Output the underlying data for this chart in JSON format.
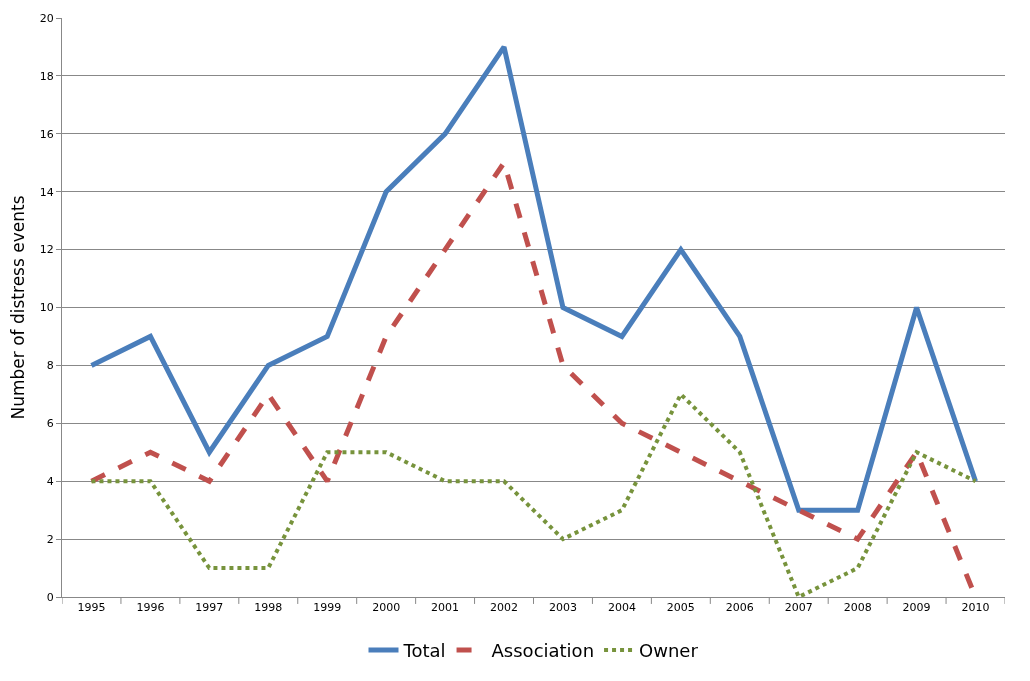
{
  "chart_data": {
    "type": "line",
    "ylabel": "Number of distress events",
    "categories": [
      "1995",
      "1996",
      "1997",
      "1998",
      "1999",
      "2000",
      "2001",
      "2002",
      "2003",
      "2004",
      "2005",
      "2006",
      "2007",
      "2008",
      "2009",
      "2010"
    ],
    "series": [
      {
        "name": "Total",
        "color": "#4a7ebb",
        "line_style": "solid",
        "values": [
          8,
          9,
          5,
          8,
          9,
          14,
          16,
          19,
          10,
          9,
          12,
          9,
          3,
          3,
          10,
          4
        ]
      },
      {
        "name": "Association",
        "color": "#c0504d",
        "line_style": "dashed",
        "values": [
          4,
          5,
          4,
          7,
          4,
          9,
          12,
          15,
          8,
          6,
          5,
          4,
          3,
          2,
          5,
          0
        ]
      },
      {
        "name": "Owner",
        "color": "#77933c",
        "line_style": "dotted",
        "values": [
          4,
          4,
          1,
          1,
          5,
          5,
          4,
          4,
          2,
          3,
          7,
          5,
          0,
          1,
          5,
          4
        ]
      }
    ],
    "ylim": [
      0,
      20
    ],
    "yticks": [
      0,
      2,
      4,
      6,
      8,
      10,
      12,
      14,
      16,
      18,
      20
    ],
    "grid": "y",
    "legend": "bottom",
    "marker": "none"
  }
}
